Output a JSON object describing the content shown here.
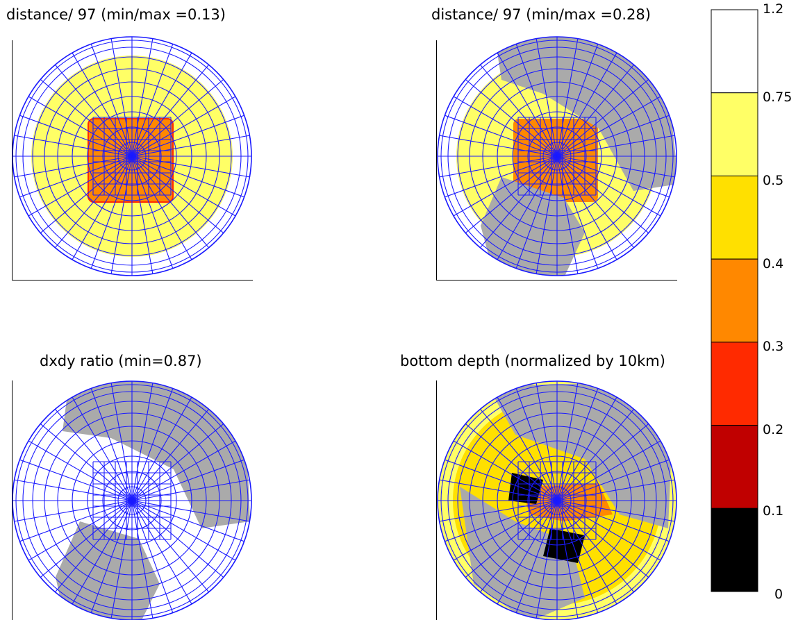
{
  "panels": [
    {
      "title": "distance/ 97 (min/max =0.13)",
      "kind": "distance1"
    },
    {
      "title": "distance/ 97 (min/max =0.28)",
      "kind": "distance2"
    },
    {
      "title": "dxdy ratio (min=0.87)",
      "kind": "dxdy"
    },
    {
      "title": "bottom depth (normalized by 10km)",
      "kind": "depth"
    }
  ],
  "colorbar": {
    "labels": [
      "1.2",
      "0.75",
      "0.5",
      "0.4",
      "0.3",
      "0.2",
      "0.1",
      "0"
    ],
    "boundaries": [
      0,
      0.1,
      0.2,
      0.3,
      0.4,
      0.5,
      0.75,
      1.2
    ],
    "colors": [
      "#000000",
      "#c00000",
      "#ff2a00",
      "#ff8800",
      "#ffe000",
      "#ffff66",
      "#ffffff"
    ]
  },
  "colors": {
    "grid": "#1a1aff",
    "land_mask": "#aaaaaa",
    "axis": "#000000"
  },
  "chart_data": [
    {
      "type": "heatmap",
      "title": "distance/ 97 (min/max =0.13)",
      "zones": [
        {
          "value_range": "0.75-1.2",
          "region": "outer ring"
        },
        {
          "value_range": "0.5-0.75",
          "region": "middle ring"
        },
        {
          "value_range": "0.3-0.4",
          "region": "central square"
        }
      ]
    },
    {
      "type": "heatmap",
      "title": "distance/ 97 (min/max =0.28)",
      "zones": [
        {
          "value_range": "0.75-1.2",
          "region": "outer ring"
        },
        {
          "value_range": "0.5-0.75",
          "region": "middle ring"
        },
        {
          "value_range": "0.3-0.4",
          "region": "central square"
        }
      ]
    },
    {
      "type": "heatmap",
      "title": "dxdy ratio (min=0.87)",
      "zones": [
        {
          "value_range": "0.75-1.2",
          "region": "ocean"
        }
      ]
    },
    {
      "type": "heatmap",
      "title": "bottom depth (normalized by 10km)",
      "zones": [
        {
          "value_range": "0-1.2",
          "region": "ocean depth field"
        }
      ]
    }
  ]
}
